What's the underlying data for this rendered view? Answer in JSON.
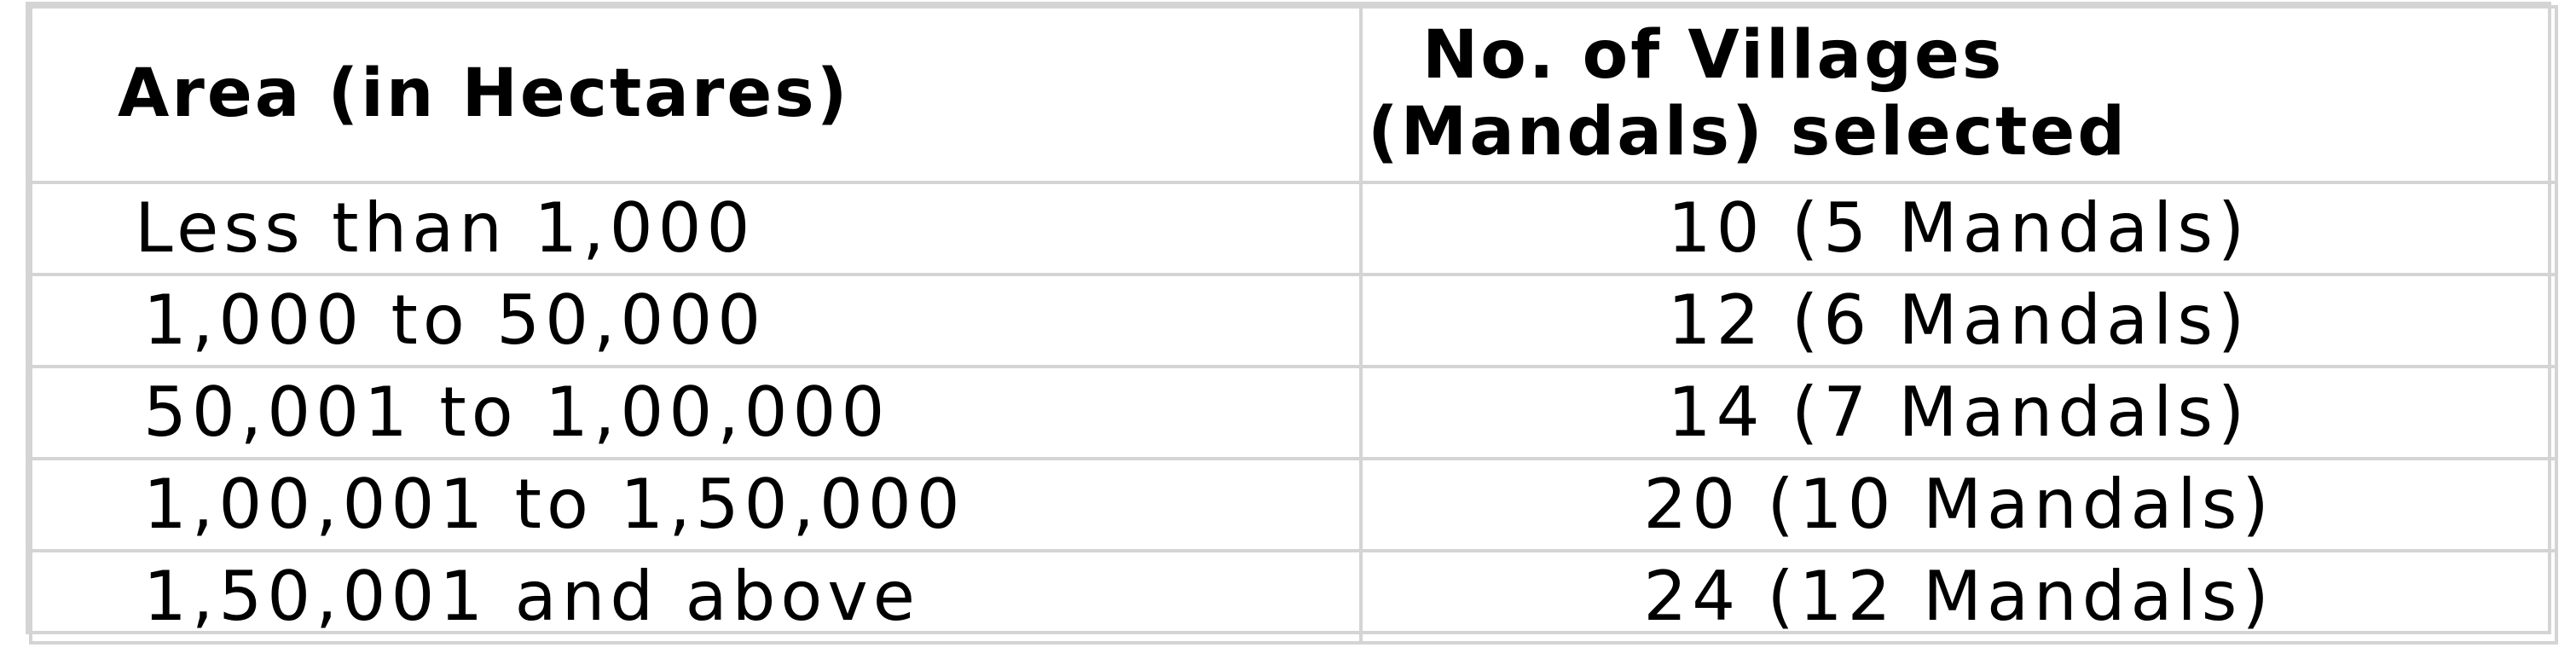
{
  "table": {
    "headers": {
      "area": "Area (in Hectares)",
      "villages_line1": "No. of Villages",
      "villages_line2": "(Mandals) selected"
    },
    "rows": [
      {
        "area": "Less than 1,000",
        "villages": "10 (5 Mandals)"
      },
      {
        "area": "1,000 to 50,000",
        "villages": "12 (6 Mandals)"
      },
      {
        "area": "50,001 to 1,00,000",
        "villages": "14 (7 Mandals)"
      },
      {
        "area": "1,00,001 to 1,50,000",
        "villages": "20 (10 Mandals)"
      },
      {
        "area": "1,50,001 and above",
        "villages": "24 (12 Mandals)"
      }
    ]
  }
}
